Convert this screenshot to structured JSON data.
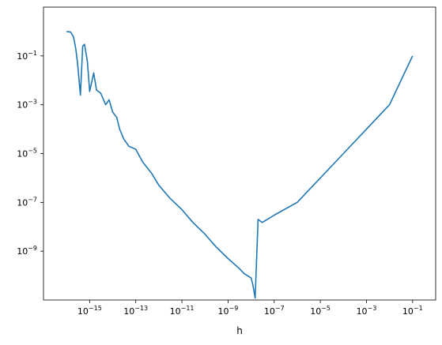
{
  "chart_data": {
    "type": "line",
    "xlabel": "h",
    "ylabel": "",
    "title": "",
    "x_scale": "log",
    "y_scale": "log",
    "xlim": [
      1e-17,
      1
    ],
    "ylim": [
      1e-11,
      10
    ],
    "grid": false,
    "x_ticks": [
      {
        "base": "10",
        "exp": "−15",
        "value": 1e-15
      },
      {
        "base": "10",
        "exp": "−13",
        "value": 1e-13
      },
      {
        "base": "10",
        "exp": "−11",
        "value": 1e-11
      },
      {
        "base": "10",
        "exp": "−9",
        "value": 1e-09
      },
      {
        "base": "10",
        "exp": "−7",
        "value": 1e-07
      },
      {
        "base": "10",
        "exp": "−5",
        "value": 1e-05
      },
      {
        "base": "10",
        "exp": "−3",
        "value": 0.001
      },
      {
        "base": "10",
        "exp": "−1",
        "value": 0.1
      }
    ],
    "y_ticks": [
      {
        "base": "10",
        "exp": "−1",
        "value": 0.1
      },
      {
        "base": "10",
        "exp": "−3",
        "value": 0.001
      },
      {
        "base": "10",
        "exp": "−5",
        "value": 1e-05
      },
      {
        "base": "10",
        "exp": "−7",
        "value": 1e-07
      },
      {
        "base": "10",
        "exp": "−9",
        "value": 1e-09
      }
    ],
    "series": [
      {
        "color": "#1f77b4",
        "x": [
          1e-16,
          1.5e-16,
          2e-16,
          2.5e-16,
          3e-16,
          4e-16,
          5e-16,
          6e-16,
          8e-16,
          1e-15,
          1.5e-15,
          2e-15,
          3e-15,
          5e-15,
          7e-15,
          1e-14,
          1.5e-14,
          2e-14,
          3e-14,
          5e-14,
          1e-13,
          2e-13,
          5e-13,
          1e-12,
          3e-12,
          1e-11,
          3e-11,
          1e-10,
          3e-10,
          1e-09,
          3e-09,
          5e-09,
          1e-08,
          1.2e-08,
          1.5e-08,
          2e-08,
          3e-08,
          5e-08,
          1e-07,
          1e-06,
          1e-05,
          0.0001,
          0.001,
          0.01,
          0.1
        ],
        "y": [
          1.0,
          0.95,
          0.6,
          0.2,
          0.05,
          0.0025,
          0.25,
          0.3,
          0.06,
          0.0035,
          0.02,
          0.004,
          0.003,
          0.001,
          0.0016,
          0.0005,
          0.0003,
          0.0001,
          4e-05,
          2e-05,
          1.5e-05,
          4.5e-06,
          1.5e-06,
          5e-07,
          1.5e-07,
          5e-08,
          1.5e-08,
          5e-09,
          1.5e-09,
          5e-10,
          2e-10,
          1.2e-10,
          8e-11,
          4e-11,
          1.2e-11,
          2e-08,
          1.5e-08,
          2e-08,
          3e-08,
          1e-07,
          1e-06,
          1e-05,
          0.0001,
          0.001,
          0.1
        ]
      }
    ],
    "line_color": "#1f77b4"
  }
}
